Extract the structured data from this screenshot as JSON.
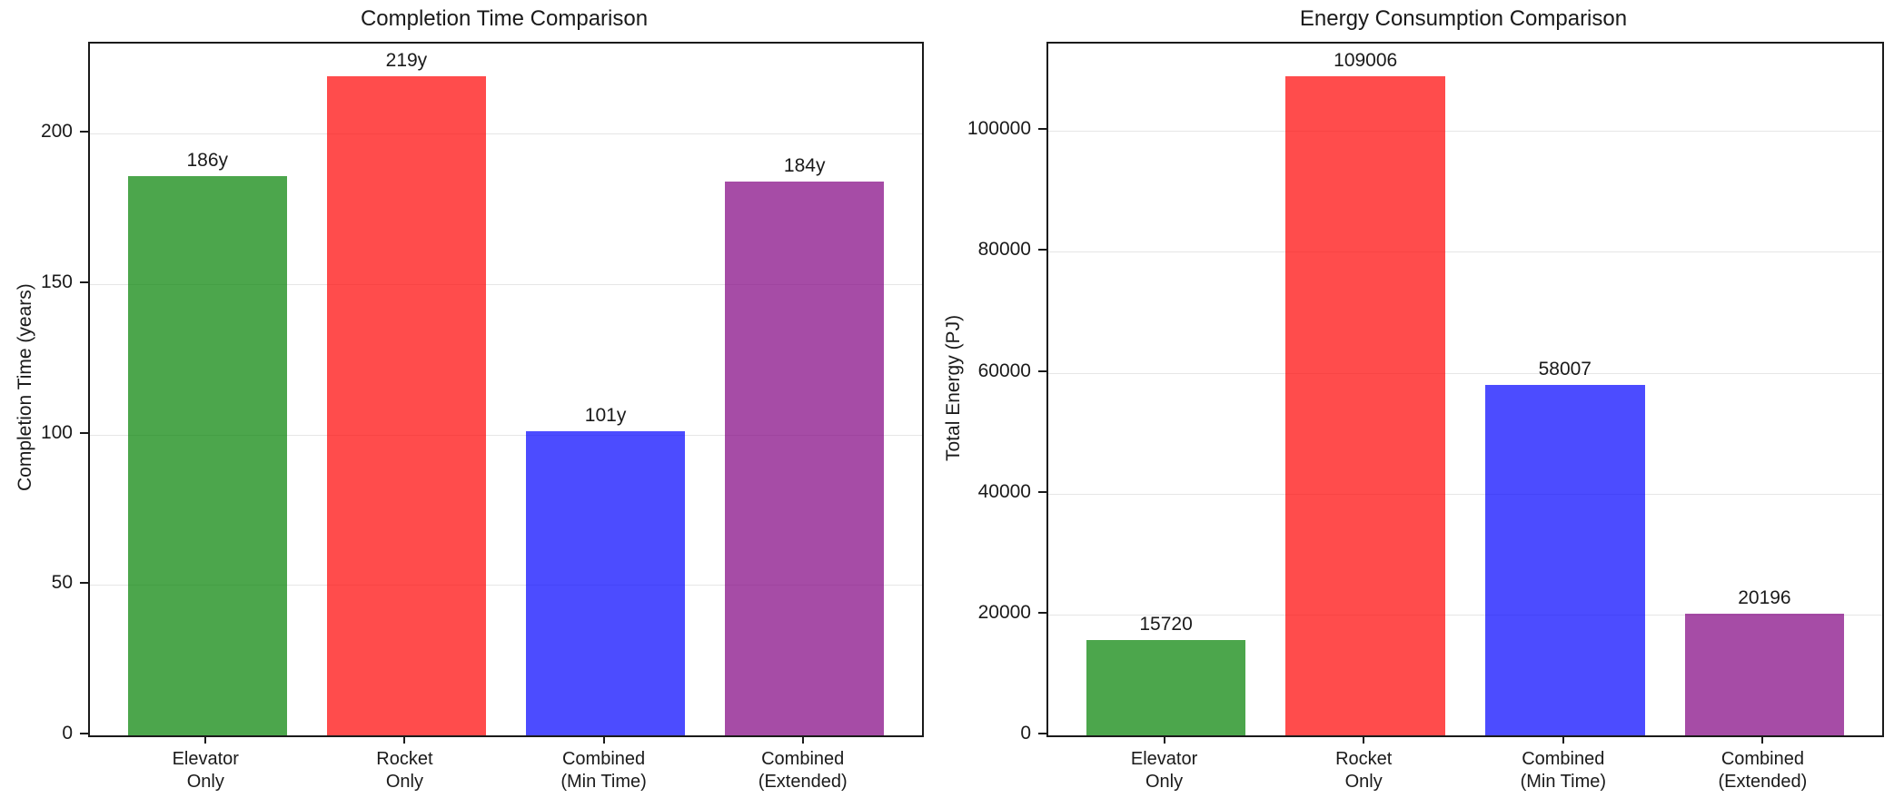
{
  "figure": {
    "background_color": "#ffffff",
    "text_color": "#1a1a1a",
    "frame_color": "#1a1a1a",
    "grid_color": "#e6e6e6"
  },
  "chart_data": [
    {
      "type": "bar",
      "title": "Completion Time Comparison",
      "xlabel": "",
      "ylabel": "Completion Time (years)",
      "categories": [
        "Elevator\nOnly",
        "Rocket\nOnly",
        "Combined\n(Min Time)",
        "Combined\n(Extended)"
      ],
      "values": [
        186,
        219,
        101,
        184
      ],
      "bar_labels": [
        "186y",
        "219y",
        "101y",
        "184y"
      ],
      "bar_colors": [
        "#008000",
        "#ff0000",
        "#0000ff",
        "#800080"
      ],
      "bar_alpha": 0.7,
      "ylim": [
        0,
        229.95
      ],
      "yticks": [
        0,
        50,
        100,
        150,
        200
      ],
      "ytick_labels": [
        "0",
        "50",
        "100",
        "150",
        "200"
      ],
      "grid": "horizontal",
      "legend": "none"
    },
    {
      "type": "bar",
      "title": "Energy Consumption Comparison",
      "xlabel": "",
      "ylabel": "Total Energy (PJ)",
      "categories": [
        "Elevator\nOnly",
        "Rocket\nOnly",
        "Combined\n(Min Time)",
        "Combined\n(Extended)"
      ],
      "values": [
        15720,
        109006,
        58007,
        20196
      ],
      "bar_labels": [
        "15720",
        "109006",
        "58007",
        "20196"
      ],
      "bar_colors": [
        "#008000",
        "#ff0000",
        "#0000ff",
        "#800080"
      ],
      "bar_alpha": 0.7,
      "ylim": [
        0,
        114456
      ],
      "yticks": [
        0,
        20000,
        40000,
        60000,
        80000,
        100000
      ],
      "ytick_labels": [
        "0",
        "20000",
        "40000",
        "60000",
        "80000",
        "100000"
      ],
      "grid": "horizontal",
      "legend": "none"
    }
  ]
}
